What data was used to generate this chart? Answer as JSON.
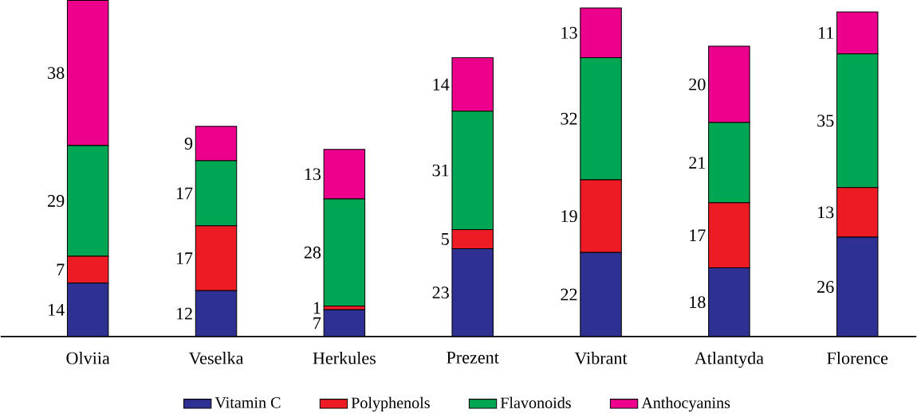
{
  "chart_data": {
    "type": "bar",
    "stacked": true,
    "data_labels": true,
    "legend": "bottom",
    "categories": [
      "Olviia",
      "Veselka",
      "Herkules",
      "Prezent",
      "Vibrant",
      "Atlantyda",
      "Florence"
    ],
    "series": [
      {
        "name": "Vitamin C",
        "color": "#2e3192",
        "values": [
          14,
          12,
          7,
          23,
          22,
          18,
          26
        ]
      },
      {
        "name": "Polyphenols",
        "color": "#ed1c24",
        "values": [
          7,
          17,
          1,
          5,
          19,
          17,
          13
        ]
      },
      {
        "name": "Flavonoids",
        "color": "#00a651",
        "values": [
          29,
          17,
          28,
          31,
          32,
          21,
          35
        ]
      },
      {
        "name": "Anthocyanins",
        "color": "#ec008c",
        "values": [
          38,
          9,
          13,
          14,
          13,
          20,
          11
        ]
      }
    ]
  }
}
